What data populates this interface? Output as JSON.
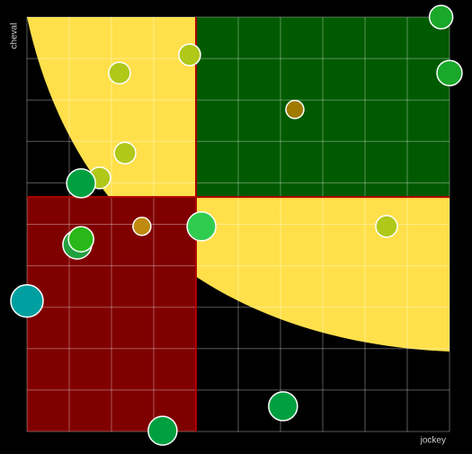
{
  "chart_data": {
    "type": "scatter",
    "x_label": "jockey",
    "y_label": "cheval",
    "xlim": [
      0,
      10
    ],
    "ylim": [
      0,
      10
    ],
    "xticks": [
      0,
      1,
      2,
      3,
      4,
      5,
      6,
      7,
      8,
      9,
      10
    ],
    "yticks": [
      0,
      1,
      2,
      3,
      4,
      5,
      6,
      7,
      8,
      9,
      10
    ],
    "grid": true,
    "split": {
      "x": 4,
      "y": 5.66
    },
    "quadrant_colors": {
      "top_right": "#005a00",
      "bottom_left": "#800000",
      "zone": "#ffe04a",
      "split_line": "#b00000"
    },
    "x": [
      9.8,
      10,
      3.85,
      2.19,
      6.34,
      2.32,
      1.72,
      1.28,
      2.72,
      4.13,
      8.51,
      1.19,
      1.28,
      0,
      6.06,
      3.21
    ],
    "values": [
      10,
      8.65,
      9.09,
      8.65,
      7.77,
      6.72,
      6.12,
      5.99,
      4.95,
      4.95,
      4.95,
      4.51,
      4.64,
      3.15,
      0.61,
      0.02
    ],
    "sizes": [
      13,
      14,
      12,
      12,
      10,
      12,
      12,
      16,
      10,
      16,
      12,
      16,
      14,
      18,
      16,
      16
    ],
    "colors": [
      "#1aa82a",
      "#1aa82a",
      "#b0c818",
      "#b0c818",
      "#a07a00",
      "#b0c818",
      "#b0c818",
      "#00a040",
      "#c08a10",
      "#30cc50",
      "#b0c818",
      "#22a040",
      "#28b818",
      "#00a0a0",
      "#00a040",
      "#00a040"
    ]
  }
}
